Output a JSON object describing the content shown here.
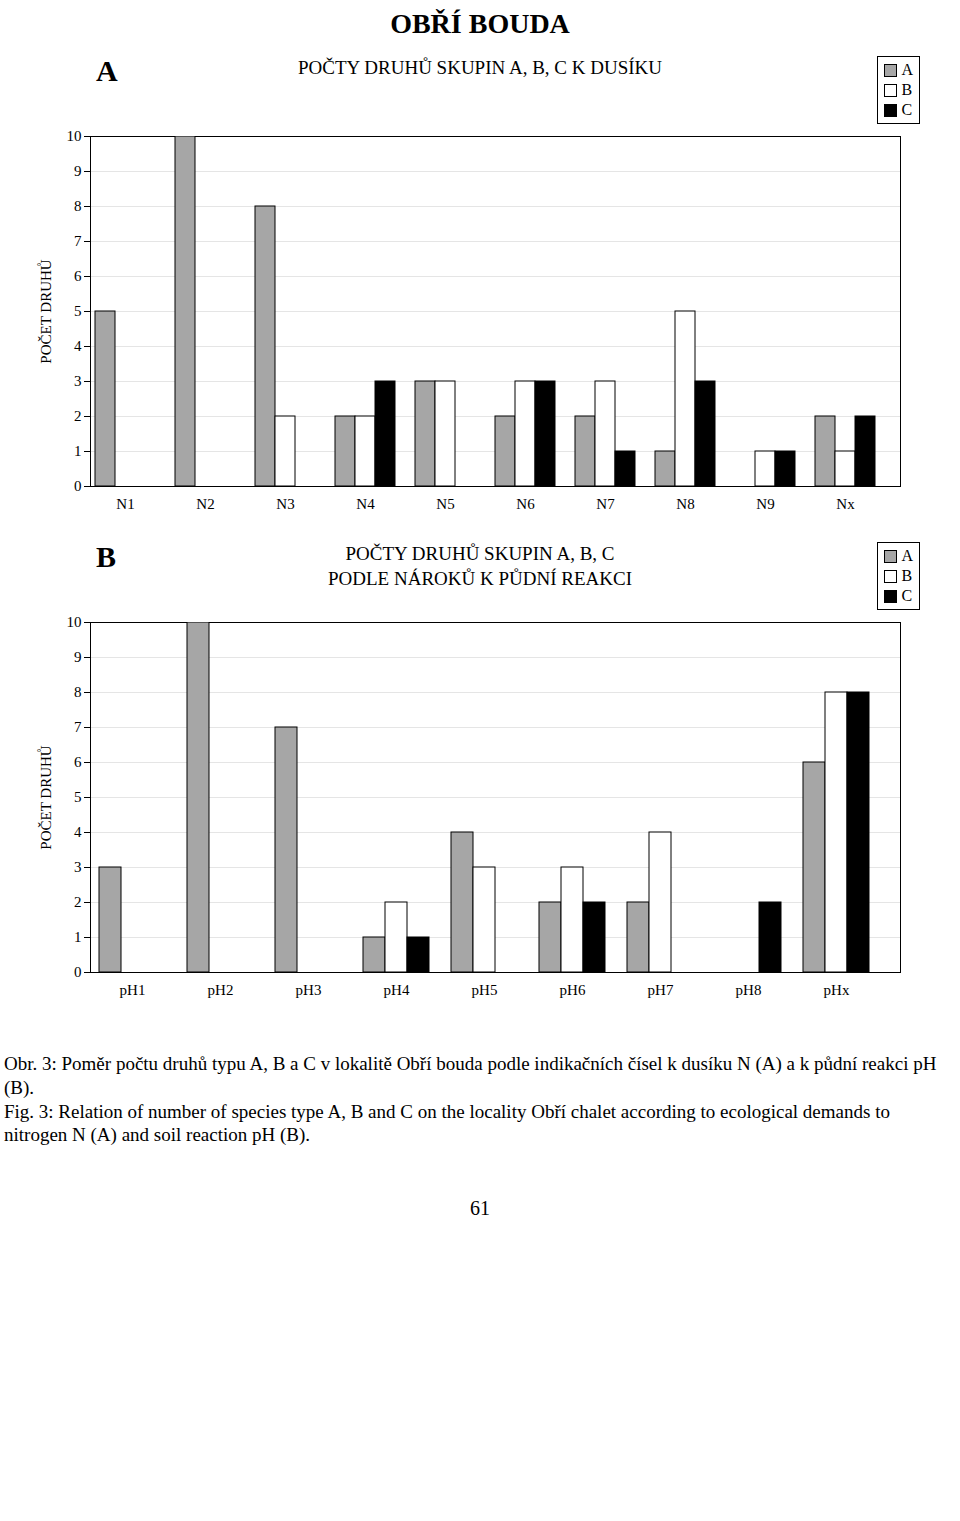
{
  "page_title": "OBŘÍ BOUDA",
  "chart_data": [
    {
      "type": "bar",
      "panel_label": "A",
      "title": "POČTY DRUHŮ SKUPIN A, B, C K DUSÍKU",
      "y_label": "POČET DRUHŮ",
      "categories": [
        "N1",
        "N2",
        "N3",
        "N4",
        "N5",
        "N6",
        "N7",
        "N8",
        "N9",
        "Nx"
      ],
      "series": [
        {
          "name": "A",
          "color": "#a6a6a6",
          "values": [
            5,
            10,
            8,
            2,
            3,
            2,
            2,
            1,
            0,
            2
          ]
        },
        {
          "name": "B",
          "color": "#ffffff",
          "values": [
            0,
            0,
            2,
            2,
            3,
            3,
            3,
            5,
            1,
            1
          ]
        },
        {
          "name": "C",
          "color": "#000000",
          "values": [
            0,
            0,
            0,
            3,
            0,
            3,
            1,
            3,
            1,
            2
          ]
        }
      ],
      "ylim": [
        0,
        10
      ],
      "yticks": [
        0,
        1,
        2,
        3,
        4,
        5,
        6,
        7,
        8,
        9,
        10
      ],
      "grid": true,
      "legend": "top-right"
    },
    {
      "type": "bar",
      "panel_label": "B",
      "title": "POČTY DRUHŮ SKUPIN A, B, C\nPODLE NÁROKŮ K PŮDNÍ REAKCI",
      "y_label": "POČET DRUHŮ",
      "categories": [
        "pH1",
        "pH2",
        "pH3",
        "pH4",
        "pH5",
        "pH6",
        "pH7",
        "pH8",
        "pHx"
      ],
      "series": [
        {
          "name": "A",
          "color": "#a6a6a6",
          "values": [
            3,
            10,
            7,
            1,
            4,
            2,
            2,
            0,
            6
          ]
        },
        {
          "name": "B",
          "color": "#ffffff",
          "values": [
            0,
            0,
            0,
            2,
            3,
            3,
            4,
            0,
            8
          ]
        },
        {
          "name": "C",
          "color": "#000000",
          "values": [
            0,
            0,
            0,
            1,
            0,
            2,
            0,
            2,
            8
          ]
        }
      ],
      "ylim": [
        0,
        10
      ],
      "yticks": [
        0,
        1,
        2,
        3,
        4,
        5,
        6,
        7,
        8,
        9,
        10
      ],
      "grid": true,
      "legend": "top-right"
    }
  ],
  "caption": [
    "Obr. 3: Poměr počtu druhů typu A, B a C v lokalitě Obří bouda podle indikačních čísel k dusíku N (A) a k půdní reakci pH (B).",
    "Fig. 3: Relation of number of species type A, B and C on the locality Obří chalet according to ecological demands to nitrogen N (A) and soil reaction pH (B)."
  ],
  "page_number": 61
}
